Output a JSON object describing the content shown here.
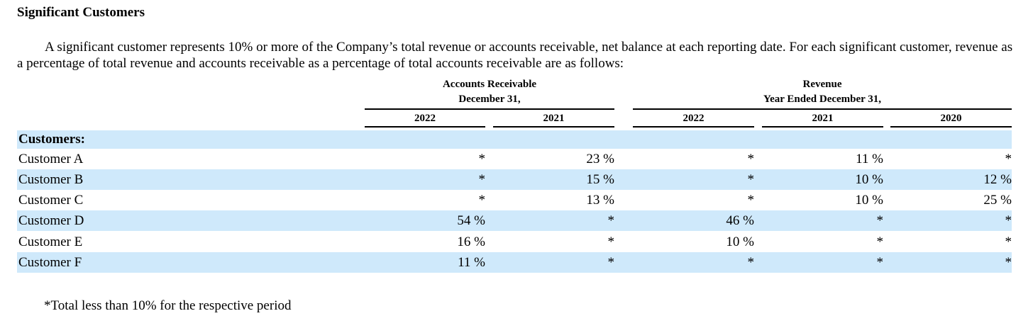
{
  "section_title": "Significant Customers",
  "intro_text": "A significant customer represents 10% or more of the Company’s total revenue or accounts receivable, net balance at each reporting date. For each significant customer, revenue as a percentage of total revenue and accounts receivable as a percentage of total accounts receivable are as follows:",
  "table": {
    "groups": {
      "accounts_receivable": {
        "line1": "Accounts Receivable",
        "line2": "December 31,"
      },
      "revenue": {
        "line1": "Revenue",
        "line2": "Year Ended December 31,"
      }
    },
    "years": [
      "2022",
      "2021",
      "2022",
      "2021",
      "2020"
    ],
    "section_label": "Customers:",
    "rows": [
      {
        "name": "Customer A",
        "values": [
          "*",
          "23 %",
          "*",
          "11 %",
          "*"
        ]
      },
      {
        "name": "Customer B",
        "values": [
          "*",
          "15 %",
          "*",
          "10 %",
          "12 %"
        ]
      },
      {
        "name": "Customer C",
        "values": [
          "*",
          "13 %",
          "*",
          "10 %",
          "25 %"
        ]
      },
      {
        "name": "Customer D",
        "values": [
          "54 %",
          "*",
          "46 %",
          "*",
          "*"
        ]
      },
      {
        "name": "Customer E",
        "values": [
          "16 %",
          "*",
          "10 %",
          "*",
          "*"
        ]
      },
      {
        "name": "Customer F",
        "values": [
          "11 %",
          "*",
          "*",
          "*",
          "*"
        ]
      }
    ]
  },
  "footnote": "*Total less than 10% for the respective period",
  "colors": {
    "row_shade": "#cfe9fb",
    "text": "#000000"
  }
}
